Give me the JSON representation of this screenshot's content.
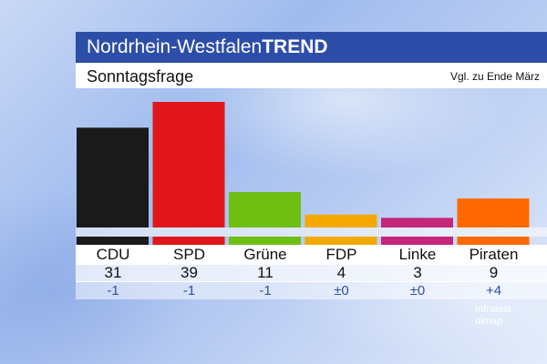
{
  "header": {
    "title_regular": "Nordrhein-Westfalen",
    "title_bold": "TREND",
    "subtitle": "Sonntagsfrage",
    "compare_note": "Vgl. zu Ende März"
  },
  "source": {
    "line1": "Infratest",
    "line2": "dimap"
  },
  "chart_data": {
    "type": "bar",
    "title": "Sonntagsfrage",
    "categories": [
      "CDU",
      "SPD",
      "Grüne",
      "FDP",
      "Linke",
      "Piraten"
    ],
    "values": [
      31,
      39,
      11,
      4,
      3,
      9
    ],
    "value_labels": [
      "31",
      "39",
      "11",
      "4",
      "3",
      "9"
    ],
    "changes": [
      "-1",
      "-1",
      "-1",
      "±0",
      "±0",
      "+4"
    ],
    "colors": [
      "#1a1a1a",
      "#e0161a",
      "#6fbe12",
      "#f4a900",
      "#c4267a",
      "#ff6a00"
    ],
    "ylim": [
      0,
      39
    ],
    "grid": false,
    "legend": "none"
  }
}
